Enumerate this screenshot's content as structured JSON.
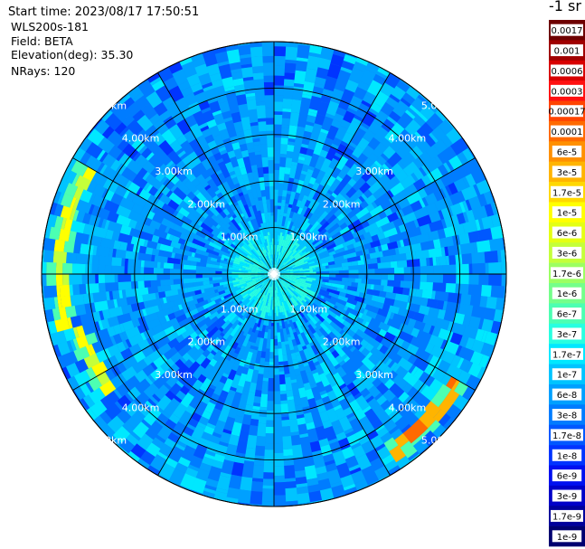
{
  "info": {
    "start_time": "Start time: 2023/08/17 17:50:51",
    "device": "WLS200s-181",
    "field": "Field: BETA",
    "elevation": "Elevation(deg): 35.30",
    "nrays": "NRays: 120"
  },
  "colorbar": {
    "unit_label": "-1 sr",
    "labels": [
      "0.0017",
      "0.001",
      "0.0006",
      "0.0003",
      "0.00017",
      "0.0001",
      "6e-5",
      "3e-5",
      "1.7e-5",
      "1e-5",
      "6e-6",
      "3e-6",
      "1.7e-6",
      "1e-6",
      "6e-7",
      "3e-7",
      "1.7e-7",
      "1e-7",
      "6e-8",
      "3e-8",
      "1.7e-8",
      "1e-8",
      "6e-9",
      "3e-9",
      "1.7e-9",
      "1e-9"
    ],
    "colors": [
      "#6e0000",
      "#a00000",
      "#d80000",
      "#ff1010",
      "#ff4400",
      "#ff6a00",
      "#ff9000",
      "#ffb400",
      "#ffd800",
      "#ffff00",
      "#e4ff14",
      "#c4ff3a",
      "#9cff62",
      "#74ff8a",
      "#4cffb2",
      "#28ffe0",
      "#00e8ff",
      "#00c4ff",
      "#00a0ff",
      "#007cff",
      "#0058ff",
      "#0034ff",
      "#0010f0",
      "#0000c8",
      "#00009c",
      "#000070"
    ]
  },
  "chart_data": {
    "type": "heatmap",
    "projection": "polar-ppi",
    "title": "",
    "range_rings_km": [
      1,
      2,
      3,
      4,
      5
    ],
    "range_ring_labels": [
      "1.00km",
      "2.00km",
      "3.00km",
      "4.00km",
      "5.00km"
    ],
    "max_range_km": 5.0,
    "spokes_deg": [
      0,
      30,
      60,
      90,
      120,
      150,
      180,
      210,
      240,
      270,
      300,
      330
    ],
    "nrays": 120,
    "color_scale": "log",
    "value_range": [
      1e-09,
      0.0017
    ],
    "background_level": "~3e-8 (blue)",
    "features": [
      {
        "description": "enhanced backscatter arc (yellow)",
        "range_km": 4.6,
        "azimuth_deg": [
          255,
          300
        ],
        "level": "1e-5"
      },
      {
        "description": "enhanced backscatter arc (yellow)",
        "range_km": 4.35,
        "azimuth_deg": [
          235,
          255
        ],
        "level": "1e-5"
      },
      {
        "description": "enhanced backscatter arc (red/orange)",
        "range_km": 4.6,
        "azimuth_deg": [
          120,
          148
        ],
        "level": "6e-5"
      }
    ]
  }
}
